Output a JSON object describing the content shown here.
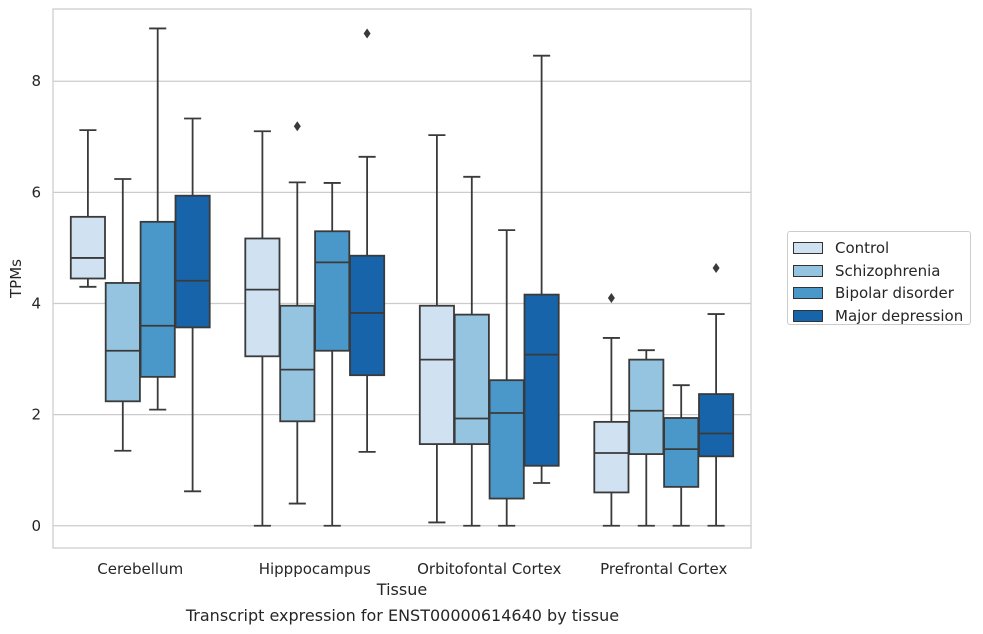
{
  "chart_data": {
    "type": "boxplot",
    "xlabel": "Tissue",
    "ylabel": "TPMs",
    "caption": "Transcript expression for ENST00000614640 by tissue",
    "ylim": [
      -0.4,
      9.3
    ],
    "yticks": [
      0,
      2,
      4,
      6,
      8
    ],
    "grid": "horizontal",
    "legend_position": "right-outside",
    "categories": [
      "Cerebellum",
      "Hipppocampus",
      "Orbitofontal Cortex",
      "Prefrontal Cortex"
    ],
    "series": [
      {
        "name": "Control",
        "color": "#d0e1f2",
        "boxes": [
          {
            "whisker_low": 4.3,
            "q1": 4.45,
            "median": 4.82,
            "q3": 5.56,
            "whisker_high": 7.12,
            "outliers": []
          },
          {
            "whisker_low": 0.0,
            "q1": 3.05,
            "median": 4.25,
            "q3": 5.17,
            "whisker_high": 7.1,
            "outliers": []
          },
          {
            "whisker_low": 0.06,
            "q1": 1.47,
            "median": 2.99,
            "q3": 3.96,
            "whisker_high": 7.03,
            "outliers": []
          },
          {
            "whisker_low": 0.0,
            "q1": 0.6,
            "median": 1.31,
            "q3": 1.87,
            "whisker_high": 3.38,
            "outliers": [
              4.1
            ]
          }
        ]
      },
      {
        "name": "Schizophrenia",
        "color": "#94c4df",
        "boxes": [
          {
            "whisker_low": 1.35,
            "q1": 2.24,
            "median": 3.15,
            "q3": 4.37,
            "whisker_high": 6.24,
            "outliers": []
          },
          {
            "whisker_low": 0.4,
            "q1": 1.88,
            "median": 2.81,
            "q3": 3.96,
            "whisker_high": 6.18,
            "outliers": [
              7.19
            ]
          },
          {
            "whisker_low": 0.0,
            "q1": 1.47,
            "median": 1.93,
            "q3": 3.8,
            "whisker_high": 6.28,
            "outliers": []
          },
          {
            "whisker_low": 0.0,
            "q1": 1.29,
            "median": 2.07,
            "q3": 2.99,
            "whisker_high": 3.16,
            "outliers": []
          }
        ]
      },
      {
        "name": "Bipolar disorder",
        "color": "#4a98c9",
        "boxes": [
          {
            "whisker_low": 2.09,
            "q1": 2.68,
            "median": 3.6,
            "q3": 5.47,
            "whisker_high": 8.95,
            "outliers": []
          },
          {
            "whisker_low": 0.0,
            "q1": 3.15,
            "median": 4.74,
            "q3": 5.3,
            "whisker_high": 6.17,
            "outliers": []
          },
          {
            "whisker_low": 0.0,
            "q1": 0.49,
            "median": 2.03,
            "q3": 2.62,
            "whisker_high": 5.32,
            "outliers": []
          },
          {
            "whisker_low": 0.0,
            "q1": 0.7,
            "median": 1.38,
            "q3": 1.94,
            "whisker_high": 2.53,
            "outliers": []
          }
        ]
      },
      {
        "name": "Major depression",
        "color": "#1764ab",
        "boxes": [
          {
            "whisker_low": 0.62,
            "q1": 3.57,
            "median": 4.41,
            "q3": 5.94,
            "whisker_high": 7.33,
            "outliers": []
          },
          {
            "whisker_low": 1.33,
            "q1": 2.71,
            "median": 3.83,
            "q3": 4.86,
            "whisker_high": 6.64,
            "outliers": [
              8.86
            ]
          },
          {
            "whisker_low": 0.77,
            "q1": 1.08,
            "median": 3.08,
            "q3": 4.16,
            "whisker_high": 8.46,
            "outliers": []
          },
          {
            "whisker_low": 0.0,
            "q1": 1.25,
            "median": 1.66,
            "q3": 2.37,
            "whisker_high": 3.81,
            "outliers": [
              4.64
            ]
          }
        ]
      }
    ]
  }
}
